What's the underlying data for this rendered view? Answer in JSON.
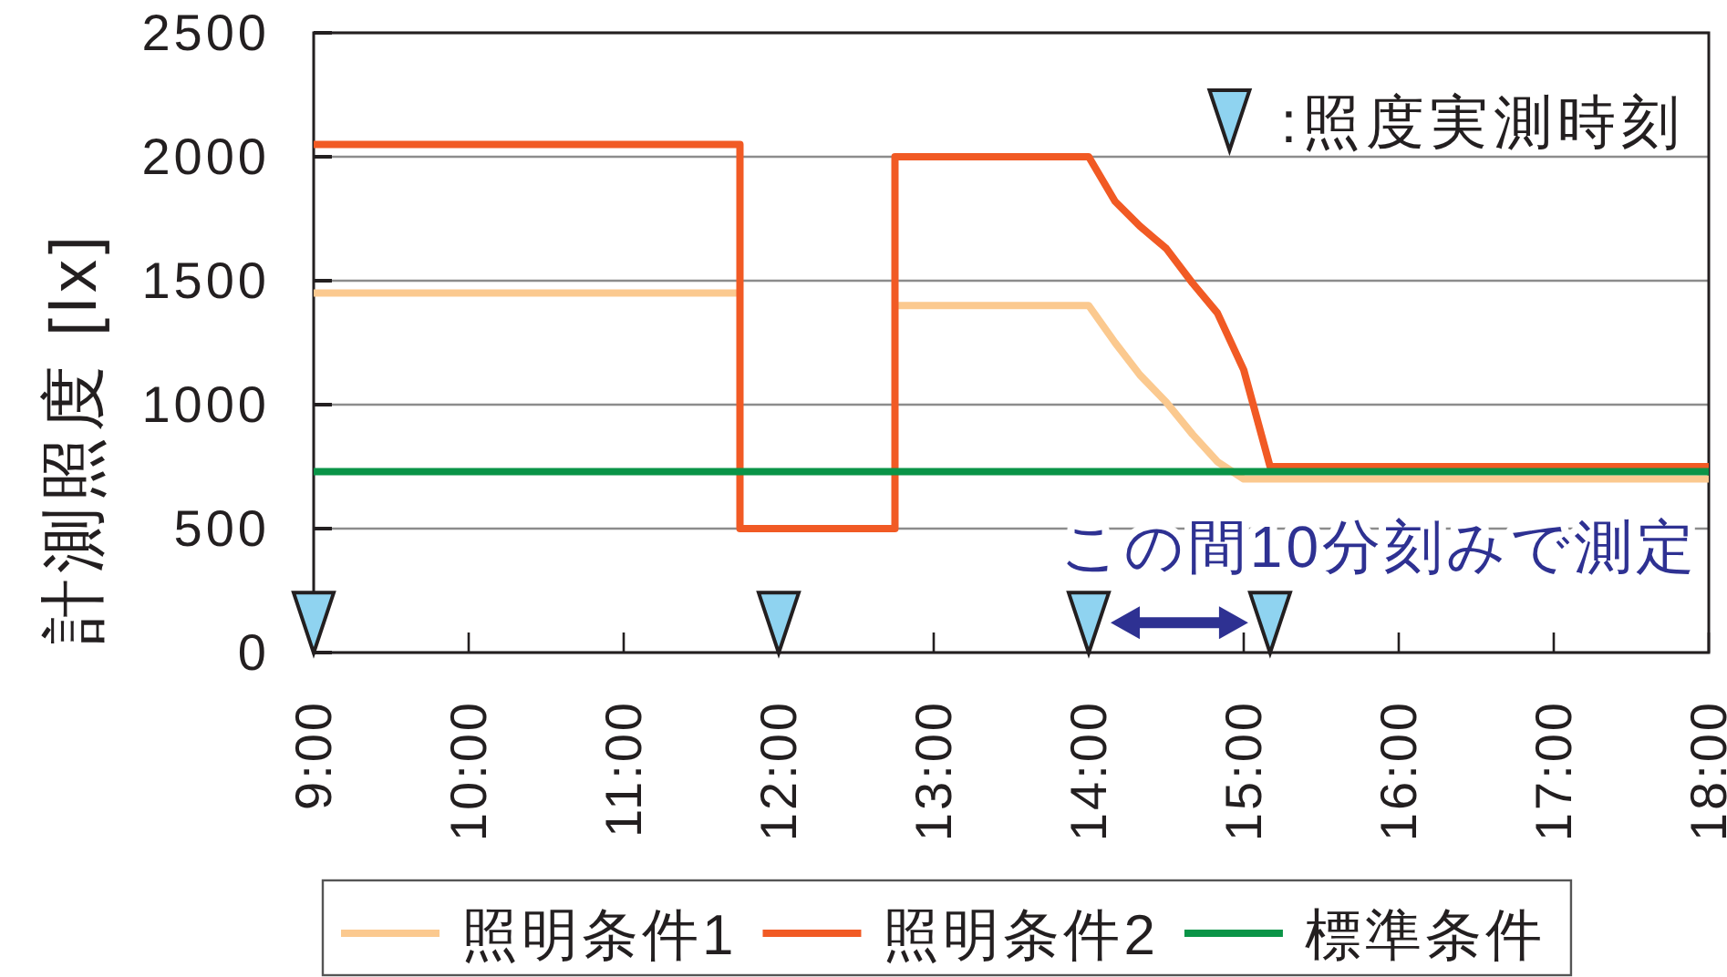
{
  "chart_data": {
    "type": "line",
    "ylabel": "計測照度 [lx]",
    "xlim": [
      9,
      18
    ],
    "xticks": [
      {
        "value": 9,
        "label": "9:00"
      },
      {
        "value": 10,
        "label": "10:00"
      },
      {
        "value": 11,
        "label": "11:00"
      },
      {
        "value": 12,
        "label": "12:00"
      },
      {
        "value": 13,
        "label": "13:00"
      },
      {
        "value": 14,
        "label": "14:00"
      },
      {
        "value": 15,
        "label": "15:00"
      },
      {
        "value": 16,
        "label": "16:00"
      },
      {
        "value": 17,
        "label": "17:00"
      },
      {
        "value": 18,
        "label": "18:00"
      }
    ],
    "ylim": [
      0,
      2500
    ],
    "yticks": [
      0,
      500,
      1000,
      1500,
      2000,
      2500
    ],
    "grid": "y",
    "legend": "bottom",
    "series": [
      {
        "name": "照明条件1",
        "color": "#fbc98f",
        "x": [
          9,
          11.75,
          12.25,
          12.75,
          14,
          14.17,
          14.33,
          14.5,
          14.67,
          14.83,
          15,
          18
        ],
        "values": [
          1450,
          1450,
          null,
          1400,
          1400,
          1250,
          1120,
          1010,
          880,
          770,
          700,
          700
        ]
      },
      {
        "name": "照明条件2",
        "color": "#f15a24",
        "x": [
          9,
          11.75,
          11.75,
          12.75,
          12.75,
          14,
          14.17,
          14.33,
          14.5,
          14.67,
          14.83,
          15,
          15.17,
          18
        ],
        "values": [
          2050,
          2050,
          500,
          500,
          2000,
          2000,
          1820,
          1720,
          1630,
          1490,
          1370,
          1140,
          750,
          750
        ]
      },
      {
        "name": "標準条件",
        "color": "#0a9447",
        "x": [
          9,
          18
        ],
        "values": [
          730,
          730
        ]
      },
      {
        "name": ":照度実測時刻",
        "type": "scatter",
        "marker": "triangle",
        "color": "#8fd3f0",
        "x": [
          9,
          12,
          14,
          15.17
        ],
        "values": [
          120,
          120,
          120,
          120
        ]
      }
    ],
    "annotations": [
      "この間10分刻みで測定"
    ]
  }
}
